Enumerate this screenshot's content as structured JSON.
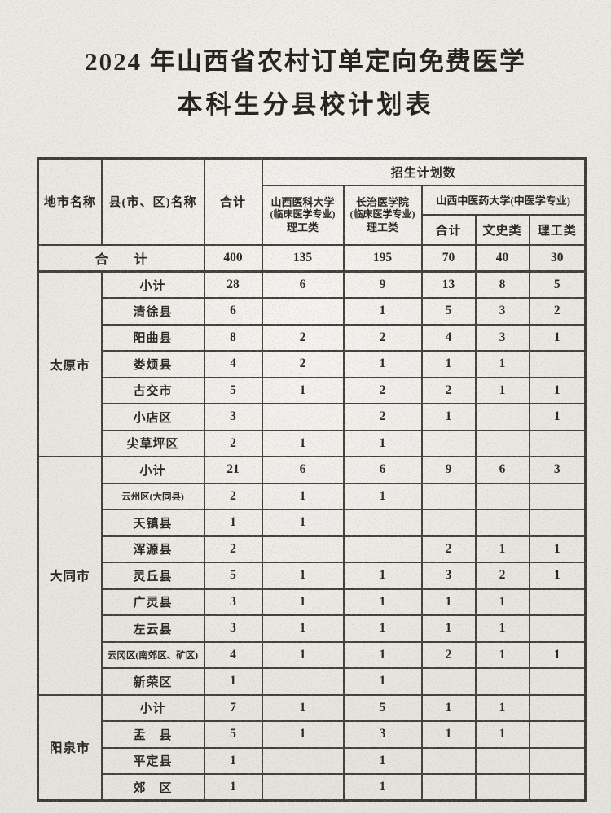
{
  "title": {
    "line1": "2024 年山西省农村订单定向免费医学",
    "line2": "本科生分县校计划表"
  },
  "table": {
    "header": {
      "city": "地市名称",
      "county": "县(市、区)名称",
      "total": "合计",
      "plan_group": "招生计划数",
      "school1": [
        "山西医科大学",
        "(临床医学专业)",
        "理工类"
      ],
      "school2": [
        "长治医学院",
        "(临床医学专业)",
        "理工类"
      ],
      "school3": "山西中医药大学(中医学专业)",
      "school3_sub": [
        "合计",
        "文史类",
        "理工类"
      ]
    },
    "grand_total": {
      "label": "合　　计",
      "values": [
        "400",
        "135",
        "195",
        "70",
        "40",
        "30"
      ]
    },
    "groups": [
      {
        "city": "太原市",
        "rows": [
          {
            "county": "小计",
            "values": [
              "28",
              "6",
              "9",
              "13",
              "8",
              "5"
            ]
          },
          {
            "county": "清徐县",
            "values": [
              "6",
              "",
              "1",
              "5",
              "3",
              "2"
            ]
          },
          {
            "county": "阳曲县",
            "values": [
              "8",
              "2",
              "2",
              "4",
              "3",
              "1"
            ]
          },
          {
            "county": "娄烦县",
            "values": [
              "4",
              "2",
              "1",
              "1",
              "1",
              ""
            ]
          },
          {
            "county": "古交市",
            "values": [
              "5",
              "1",
              "2",
              "2",
              "1",
              "1"
            ]
          },
          {
            "county": "小店区",
            "values": [
              "3",
              "",
              "2",
              "1",
              "",
              "1"
            ]
          },
          {
            "county": "尖草坪区",
            "values": [
              "2",
              "1",
              "1",
              "",
              "",
              ""
            ]
          }
        ]
      },
      {
        "city": "大同市",
        "rows": [
          {
            "county": "小计",
            "values": [
              "21",
              "6",
              "6",
              "9",
              "6",
              "3"
            ]
          },
          {
            "county": "云州区(大同县)",
            "values": [
              "2",
              "1",
              "1",
              "",
              "",
              ""
            ]
          },
          {
            "county": "天镇县",
            "values": [
              "1",
              "1",
              "",
              "",
              "",
              ""
            ]
          },
          {
            "county": "浑源县",
            "values": [
              "2",
              "",
              "",
              "2",
              "1",
              "1"
            ]
          },
          {
            "county": "灵丘县",
            "values": [
              "5",
              "1",
              "1",
              "3",
              "2",
              "1"
            ]
          },
          {
            "county": "广灵县",
            "values": [
              "3",
              "1",
              "1",
              "1",
              "1",
              ""
            ]
          },
          {
            "county": "左云县",
            "values": [
              "3",
              "1",
              "1",
              "1",
              "1",
              ""
            ]
          },
          {
            "county": "云冈区(南郊区、矿区)",
            "values": [
              "4",
              "1",
              "1",
              "2",
              "1",
              "1"
            ]
          },
          {
            "county": "新荣区",
            "values": [
              "1",
              "",
              "1",
              "",
              "",
              ""
            ]
          }
        ]
      },
      {
        "city": "阳泉市",
        "rows": [
          {
            "county": "小计",
            "values": [
              "7",
              "1",
              "5",
              "1",
              "1",
              ""
            ]
          },
          {
            "county": "盂　县",
            "values": [
              "5",
              "1",
              "3",
              "1",
              "1",
              ""
            ]
          },
          {
            "county": "平定县",
            "values": [
              "1",
              "",
              "1",
              "",
              "",
              ""
            ]
          },
          {
            "county": "郊　区",
            "values": [
              "1",
              "",
              "1",
              "",
              "",
              ""
            ]
          }
        ]
      }
    ]
  }
}
